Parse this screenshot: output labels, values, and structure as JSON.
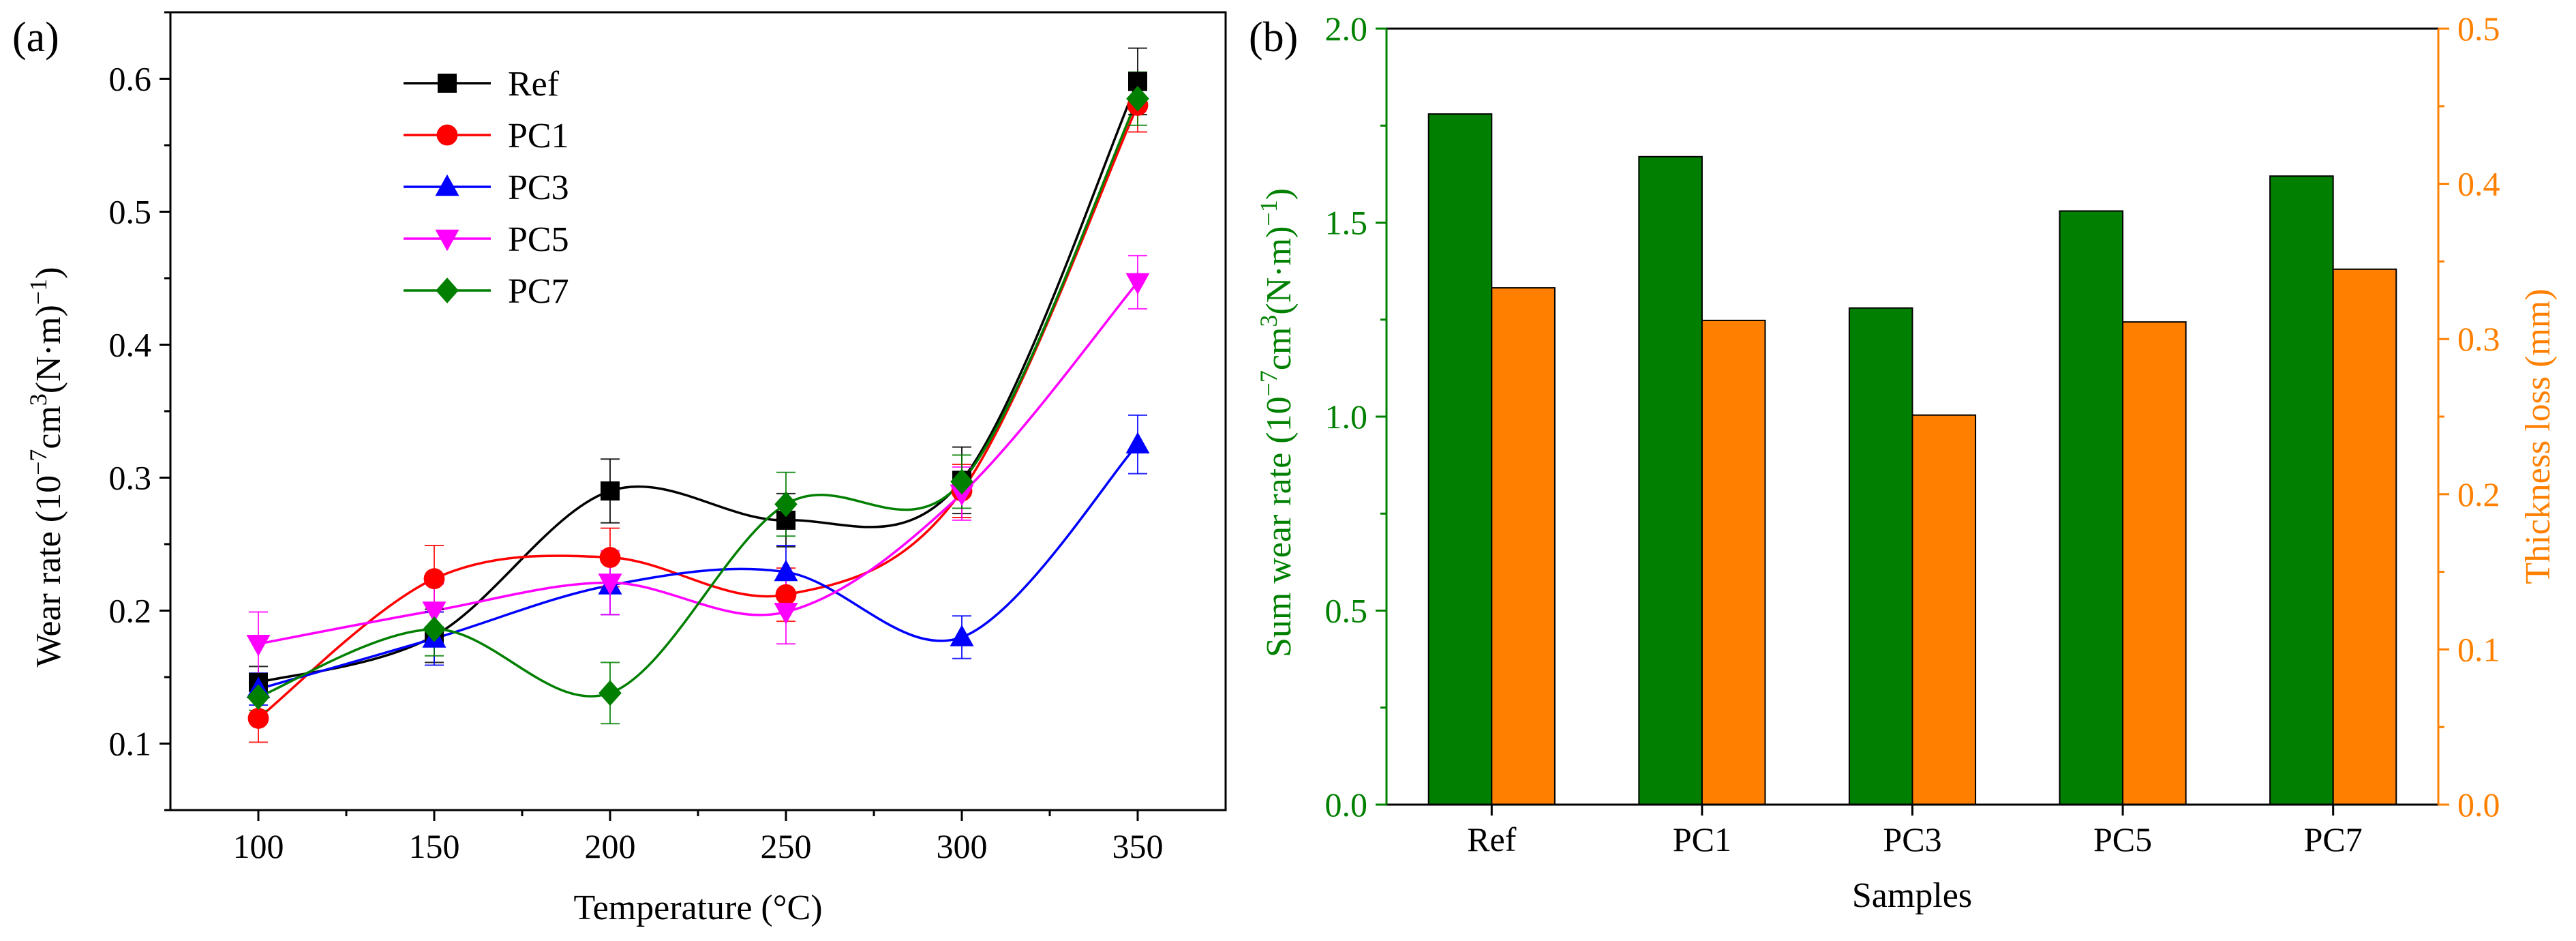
{
  "chart_data": [
    {
      "panel_label": "(a)",
      "type": "line",
      "xlabel": "Temperature (°C)",
      "ylabel_main": "Wear rate (10",
      "ylabel_sup1": "−7",
      "ylabel_mid": "cm",
      "ylabel_sup2": "3",
      "ylabel_end": "(N·m)",
      "ylabel_sup3": "−1",
      "ylabel_close": ")",
      "xlim": [
        75,
        375
      ],
      "ylim": [
        0.05,
        0.65
      ],
      "xticks": [
        100,
        150,
        200,
        250,
        300,
        350
      ],
      "yticks": [
        0.1,
        0.2,
        0.3,
        0.4,
        0.5,
        0.6
      ],
      "x": [
        100,
        150,
        200,
        250,
        300,
        350
      ],
      "series": [
        {
          "name": "Ref",
          "marker": "square",
          "color": "#000000",
          "values": [
            0.146,
            0.181,
            0.29,
            0.268,
            0.298,
            0.598
          ],
          "errors": [
            0.012,
            0.02,
            0.024,
            0.02,
            0.025,
            0.025
          ]
        },
        {
          "name": "PC1",
          "marker": "circle",
          "color": "#ff0000",
          "values": [
            0.119,
            0.224,
            0.24,
            0.212,
            0.29,
            0.58
          ],
          "errors": [
            0.018,
            0.025,
            0.022,
            0.02,
            0.02,
            0.02
          ]
        },
        {
          "name": "PC3",
          "marker": "triangle-up",
          "color": "#0000ff",
          "values": [
            0.141,
            0.179,
            0.219,
            0.229,
            0.18,
            0.325
          ],
          "errors": [
            0.012,
            0.02,
            0.022,
            0.02,
            0.016,
            0.022
          ]
        },
        {
          "name": "PC5",
          "marker": "triangle-down",
          "color": "#ff00ff",
          "values": [
            0.175,
            0.2,
            0.221,
            0.199,
            0.288,
            0.447
          ],
          "errors": [
            0.024,
            0.02,
            0.024,
            0.024,
            0.02,
            0.02
          ]
        },
        {
          "name": "PC7",
          "marker": "diamond",
          "color": "#007f00",
          "values": [
            0.135,
            0.186,
            0.138,
            0.28,
            0.297,
            0.585
          ],
          "errors": [
            0.01,
            0.02,
            0.023,
            0.024,
            0.02,
            0.02
          ]
        }
      ]
    },
    {
      "panel_label": "(b)",
      "type": "bar",
      "xlabel": "Samples",
      "ylabel_main": "Sum wear rate (10",
      "ylabel_sup1": "−7",
      "ylabel_mid": "cm",
      "ylabel_sup2": "3",
      "ylabel_end": "(N·m)",
      "ylabel_sup3": "−1",
      "ylabel_close": ")",
      "ylabel_right": "Thickness loss (mm)",
      "categories": [
        "Ref",
        "PC1",
        "PC3",
        "PC5",
        "PC7"
      ],
      "ylim_left": [
        0,
        2.0
      ],
      "ylim_right": [
        0,
        0.5
      ],
      "yticks_left": [
        "0.0",
        "0.5",
        "1.0",
        "1.5",
        "2.0"
      ],
      "yticks_right": [
        "0.0",
        "0.1",
        "0.2",
        "0.3",
        "0.4",
        "0.5"
      ],
      "series": [
        {
          "name": "Sum wear rate",
          "axis": "left",
          "color": "#007f00",
          "values": [
            1.78,
            1.67,
            1.28,
            1.53,
            1.62
          ]
        },
        {
          "name": "Thickness loss",
          "axis": "right",
          "color": "#ff8000",
          "values": [
            0.333,
            0.312,
            0.251,
            0.311,
            0.345
          ]
        }
      ],
      "left_axis_color": "#008000",
      "right_axis_color": "#ff8000"
    }
  ]
}
